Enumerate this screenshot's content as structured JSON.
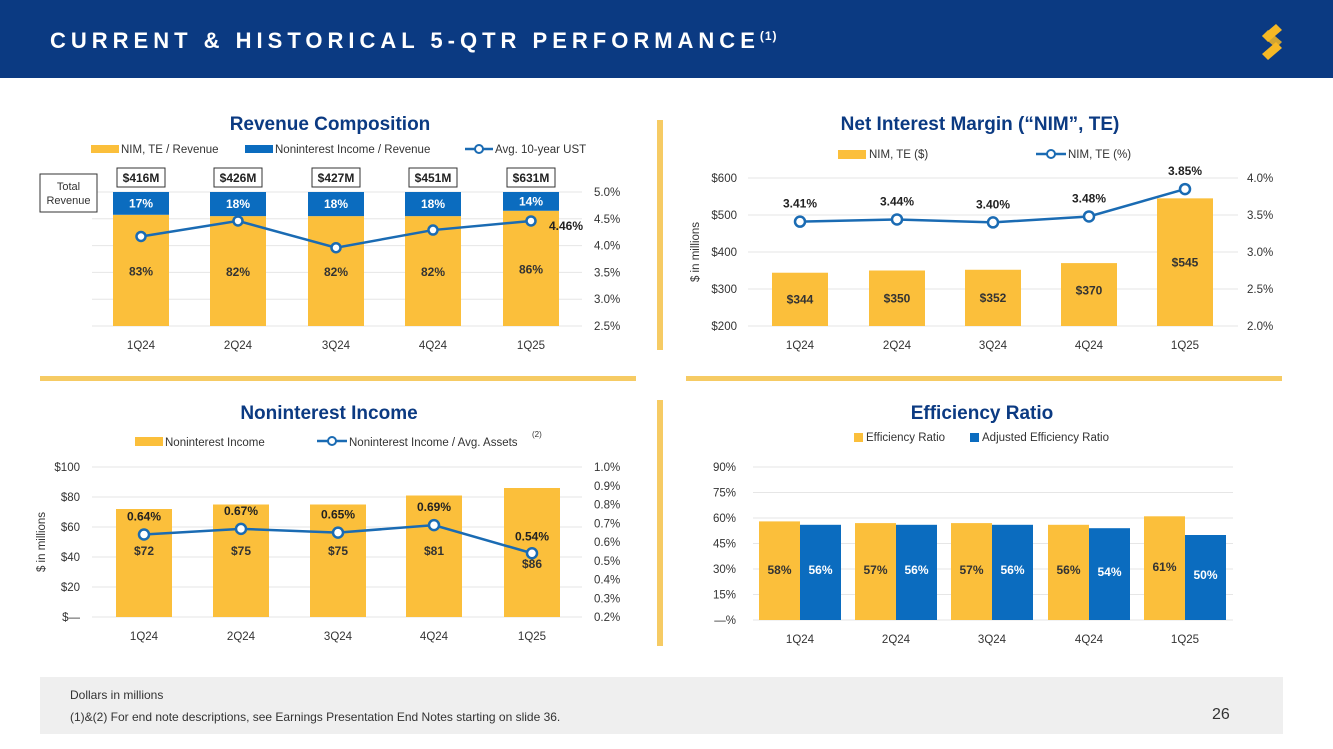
{
  "header": {
    "title": "CURRENT & HISTORICAL 5-QTR PERFORMANCE",
    "title_sup": "(1)"
  },
  "colors": {
    "navy": "#0b3a82",
    "gold": "#fbbf3b",
    "blue": "#0b6cbf",
    "line": "#1a6bb3",
    "text": "#222222"
  },
  "footer": {
    "line1": "Dollars in millions",
    "line2": "(1)&(2)  For end note descriptions, see Earnings Presentation End Notes starting on slide 36."
  },
  "page_number": "26",
  "chart_data": [
    {
      "id": "revenue",
      "type": "bar",
      "title": "Revenue Composition",
      "legend": [
        "NIM, TE / Revenue",
        "Noninterest Income / Revenue",
        "Avg. 10-year UST"
      ],
      "categories": [
        "1Q24",
        "2Q24",
        "3Q24",
        "4Q24",
        "1Q25"
      ],
      "total_label": "Total Revenue",
      "totals": [
        "$416M",
        "$426M",
        "$427M",
        "$451M",
        "$631M"
      ],
      "series": [
        {
          "name": "NIM, TE / Revenue",
          "values": [
            83,
            82,
            82,
            82,
            86
          ],
          "labels": [
            "83%",
            "82%",
            "82%",
            "82%",
            "86%"
          ]
        },
        {
          "name": "Noninterest Income / Revenue",
          "values": [
            17,
            18,
            18,
            18,
            14
          ],
          "labels": [
            "17%",
            "18%",
            "18%",
            "18%",
            "14%"
          ]
        },
        {
          "name": "Avg. 10-year UST",
          "values": [
            4.17,
            4.46,
            3.96,
            4.29,
            4.46
          ],
          "labels": [
            "",
            "",
            "",
            "",
            "4.46%"
          ]
        }
      ],
      "y2_ticks": [
        "2.5%",
        "3.0%",
        "3.5%",
        "4.0%",
        "4.5%",
        "5.0%"
      ],
      "y2lim": [
        2.5,
        5.0
      ]
    },
    {
      "id": "nim",
      "type": "bar",
      "title": "Net Interest Margin (“NIM”, TE)",
      "legend": [
        "NIM, TE ($)",
        "NIM, TE (%)"
      ],
      "categories": [
        "1Q24",
        "2Q24",
        "3Q24",
        "4Q24",
        "1Q25"
      ],
      "ylabel": "$ in millions",
      "ylim": [
        200,
        600
      ],
      "y_ticks": [
        "$200",
        "$300",
        "$400",
        "$500",
        "$600"
      ],
      "y2lim": [
        2.0,
        4.0
      ],
      "y2_ticks": [
        "2.0%",
        "2.5%",
        "3.0%",
        "3.5%",
        "4.0%"
      ],
      "series": [
        {
          "name": "NIM, TE ($)",
          "values": [
            344,
            350,
            352,
            370,
            545
          ],
          "labels": [
            "$344",
            "$350",
            "$352",
            "$370",
            "$545"
          ]
        },
        {
          "name": "NIM, TE (%)",
          "values": [
            3.41,
            3.44,
            3.4,
            3.48,
            3.85
          ],
          "labels": [
            "3.41%",
            "3.44%",
            "3.40%",
            "3.48%",
            "3.85%"
          ]
        }
      ]
    },
    {
      "id": "nonint",
      "type": "bar",
      "title": "Noninterest Income",
      "legend": [
        "Noninterest Income",
        "Noninterest Income / Avg. Assets"
      ],
      "legend_sup": "(2)",
      "categories": [
        "1Q24",
        "2Q24",
        "3Q24",
        "4Q24",
        "1Q25"
      ],
      "ylabel": "$ in millions",
      "ylim": [
        0,
        100
      ],
      "y_ticks": [
        "$—",
        "$20",
        "$40",
        "$60",
        "$80",
        "$100"
      ],
      "y2lim": [
        0.2,
        1.0
      ],
      "y2_ticks": [
        "0.2%",
        "0.3%",
        "0.4%",
        "0.5%",
        "0.6%",
        "0.7%",
        "0.8%",
        "0.9%",
        "1.0%"
      ],
      "series": [
        {
          "name": "Noninterest Income",
          "values": [
            72,
            75,
            75,
            81,
            86
          ],
          "labels": [
            "$72",
            "$75",
            "$75",
            "$81",
            "$86"
          ]
        },
        {
          "name": "Noninterest Income / Avg. Assets",
          "values": [
            0.64,
            0.67,
            0.65,
            0.69,
            0.54
          ],
          "labels": [
            "0.64%",
            "0.67%",
            "0.65%",
            "0.69%",
            "0.54%"
          ]
        }
      ]
    },
    {
      "id": "eff",
      "type": "bar",
      "title": "Efficiency Ratio",
      "legend": [
        "Efficiency Ratio",
        "Adjusted Efficiency Ratio"
      ],
      "categories": [
        "1Q24",
        "2Q24",
        "3Q24",
        "4Q24",
        "1Q25"
      ],
      "ylim": [
        0,
        90
      ],
      "y_ticks": [
        "—%",
        "15%",
        "30%",
        "45%",
        "60%",
        "75%",
        "90%"
      ],
      "series": [
        {
          "name": "Efficiency Ratio",
          "values": [
            58,
            57,
            57,
            56,
            61
          ],
          "labels": [
            "58%",
            "57%",
            "57%",
            "56%",
            "61%"
          ]
        },
        {
          "name": "Adjusted Efficiency Ratio",
          "values": [
            56,
            56,
            56,
            54,
            50
          ],
          "labels": [
            "56%",
            "56%",
            "56%",
            "54%",
            "50%"
          ]
        }
      ]
    }
  ]
}
